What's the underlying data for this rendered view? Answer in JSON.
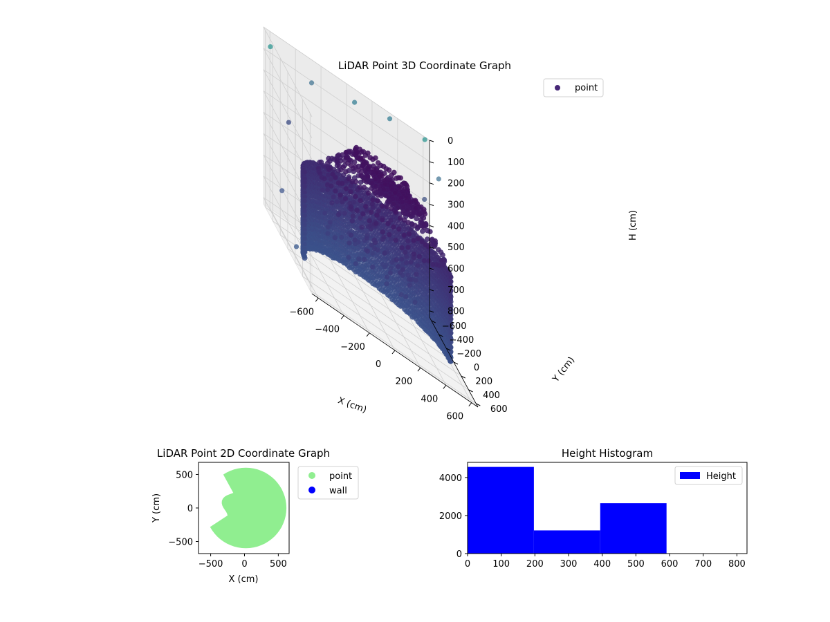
{
  "chart_data": [
    {
      "type": "scatter",
      "projection": "3d",
      "title": "LiDAR Point 3D Coordinate Graph",
      "xlabel": "X (cm)",
      "ylabel": "Y (cm)",
      "zlabel": "H (cm)",
      "xticks": [
        "−600",
        "−400",
        "−200",
        "0",
        "200",
        "400",
        "600"
      ],
      "yticks": [
        "−600",
        "−400",
        "−200",
        "0",
        "200",
        "400",
        "600"
      ],
      "zticks": [
        "0",
        "100",
        "200",
        "300",
        "400",
        "500",
        "600",
        "700",
        "800"
      ],
      "xlim": [
        -650,
        650
      ],
      "ylim": [
        -650,
        650
      ],
      "zlim": [
        0,
        830
      ],
      "z_axis_inverted": true,
      "legend": {
        "label": "point",
        "position": "upper right"
      },
      "grid": true,
      "colormap": "viridis (low values)",
      "description_of_points": "dense vertical wall band along a curved arc (H roughly 400–830), spiral rings near the top (H roughly 150–400), plus sparse outliers",
      "colors": {
        "marker_dark": "#440154",
        "marker_mid": "#3b528b",
        "marker_light": "#21918c"
      }
    },
    {
      "type": "scatter",
      "title": "LiDAR Point 2D Coordinate Graph",
      "xlabel": "X (cm)",
      "ylabel": "Y (cm)",
      "xticks": [
        "−500",
        "0",
        "500"
      ],
      "yticks": [
        "500",
        "0",
        "−500"
      ],
      "xlim": [
        -680,
        660
      ],
      "ylim": [
        -680,
        680
      ],
      "legend": {
        "position": "outside right",
        "entries": [
          {
            "label": "point",
            "color": "#90ee90"
          },
          {
            "label": "wall",
            "color": "#0000ff"
          }
        ]
      },
      "grid": false
    },
    {
      "type": "bar",
      "subtype": "histogram",
      "title": "Height Histogram",
      "xticks": [
        "0",
        "100",
        "200",
        "300",
        "400",
        "500",
        "600",
        "700",
        "800"
      ],
      "yticks": [
        "0",
        "2000",
        "4000"
      ],
      "xlim": [
        0,
        830
      ],
      "ylim": [
        0,
        4800
      ],
      "bins": [
        {
          "x0": 0,
          "x1": 197,
          "count": 4560
        },
        {
          "x0": 197,
          "x1": 394,
          "count": 1220
        },
        {
          "x0": 394,
          "x1": 591,
          "count": 2650
        },
        {
          "x0": 591,
          "x1": 788,
          "count": 0
        }
      ],
      "series": [
        {
          "name": "Height"
        }
      ],
      "color": "#0000ff",
      "legend": {
        "position": "upper right"
      },
      "grid": false
    }
  ]
}
